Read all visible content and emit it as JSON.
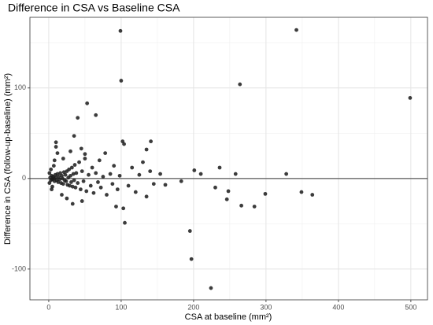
{
  "chart_data": {
    "type": "scatter",
    "title": "Difference in CSA vs Baseline CSA",
    "x_label": "CSA at baseline (mm²)",
    "y_label": "Difference in CSA (follow-up-baseline) (mm²)",
    "color": "#1a1a1a",
    "grid": true,
    "reference_line": 0,
    "xlim": [
      -26,
      523
    ],
    "ylim": [
      -134,
      178
    ],
    "xticks": [
      0,
      100,
      200,
      300,
      400,
      500
    ],
    "yticks": [
      -100,
      0,
      100
    ],
    "x_minor_ticks": [
      50,
      150,
      250,
      350,
      450
    ],
    "y_minor_ticks": [
      -50,
      50,
      150
    ],
    "x": [
      99,
      342,
      499,
      264,
      100,
      53,
      40,
      65,
      195,
      197,
      224,
      230,
      236,
      258,
      248,
      246,
      266,
      284,
      299,
      328,
      349,
      364,
      201,
      210,
      183,
      161,
      154,
      135,
      141,
      102,
      104,
      103,
      105,
      93,
      33,
      46,
      2,
      3,
      4,
      5,
      6,
      7,
      8,
      9,
      10,
      11,
      12,
      13,
      14,
      15,
      16,
      17,
      18,
      19,
      20,
      21,
      22,
      23,
      24,
      25,
      26,
      27,
      28,
      29,
      30,
      31,
      32,
      33,
      34,
      35,
      36,
      37,
      38,
      40,
      42,
      44,
      46,
      48,
      50,
      52,
      55,
      58,
      60,
      62,
      65,
      68,
      70,
      72,
      75,
      78,
      80,
      85,
      88,
      90,
      95,
      98,
      110,
      115,
      120,
      125,
      130,
      135,
      140,
      145,
      12,
      10,
      10,
      20,
      18,
      25,
      30,
      35,
      45,
      50,
      1,
      1,
      3,
      5,
      7,
      4,
      8
    ],
    "y": [
      163,
      164,
      89,
      104,
      108,
      83,
      67,
      70,
      -58,
      -89,
      -121,
      -10,
      12,
      5,
      -14,
      -23,
      -30,
      -31,
      -17,
      5,
      -15,
      -18,
      9,
      5,
      -3,
      -7,
      5,
      32,
      41,
      41,
      38,
      -33,
      -49,
      -31,
      -28,
      -25,
      1,
      -2,
      3,
      -1,
      2,
      0,
      -3,
      4,
      1,
      -2,
      5,
      -4,
      2,
      -1,
      6,
      -5,
      3,
      0,
      -6,
      7,
      -2,
      4,
      -3,
      8,
      -7,
      1,
      10,
      -8,
      3,
      -4,
      12,
      -9,
      5,
      -2,
      15,
      -10,
      6,
      -5,
      18,
      -12,
      8,
      -3,
      22,
      -14,
      4,
      -8,
      12,
      -16,
      6,
      -4,
      20,
      -10,
      2,
      28,
      -18,
      5,
      -6,
      14,
      -12,
      3,
      -8,
      12,
      -15,
      4,
      18,
      -20,
      8,
      -6,
      28,
      35,
      40,
      22,
      -18,
      -22,
      30,
      47,
      33,
      27,
      -5,
      6,
      10,
      -9,
      14,
      -12,
      20
    ]
  }
}
